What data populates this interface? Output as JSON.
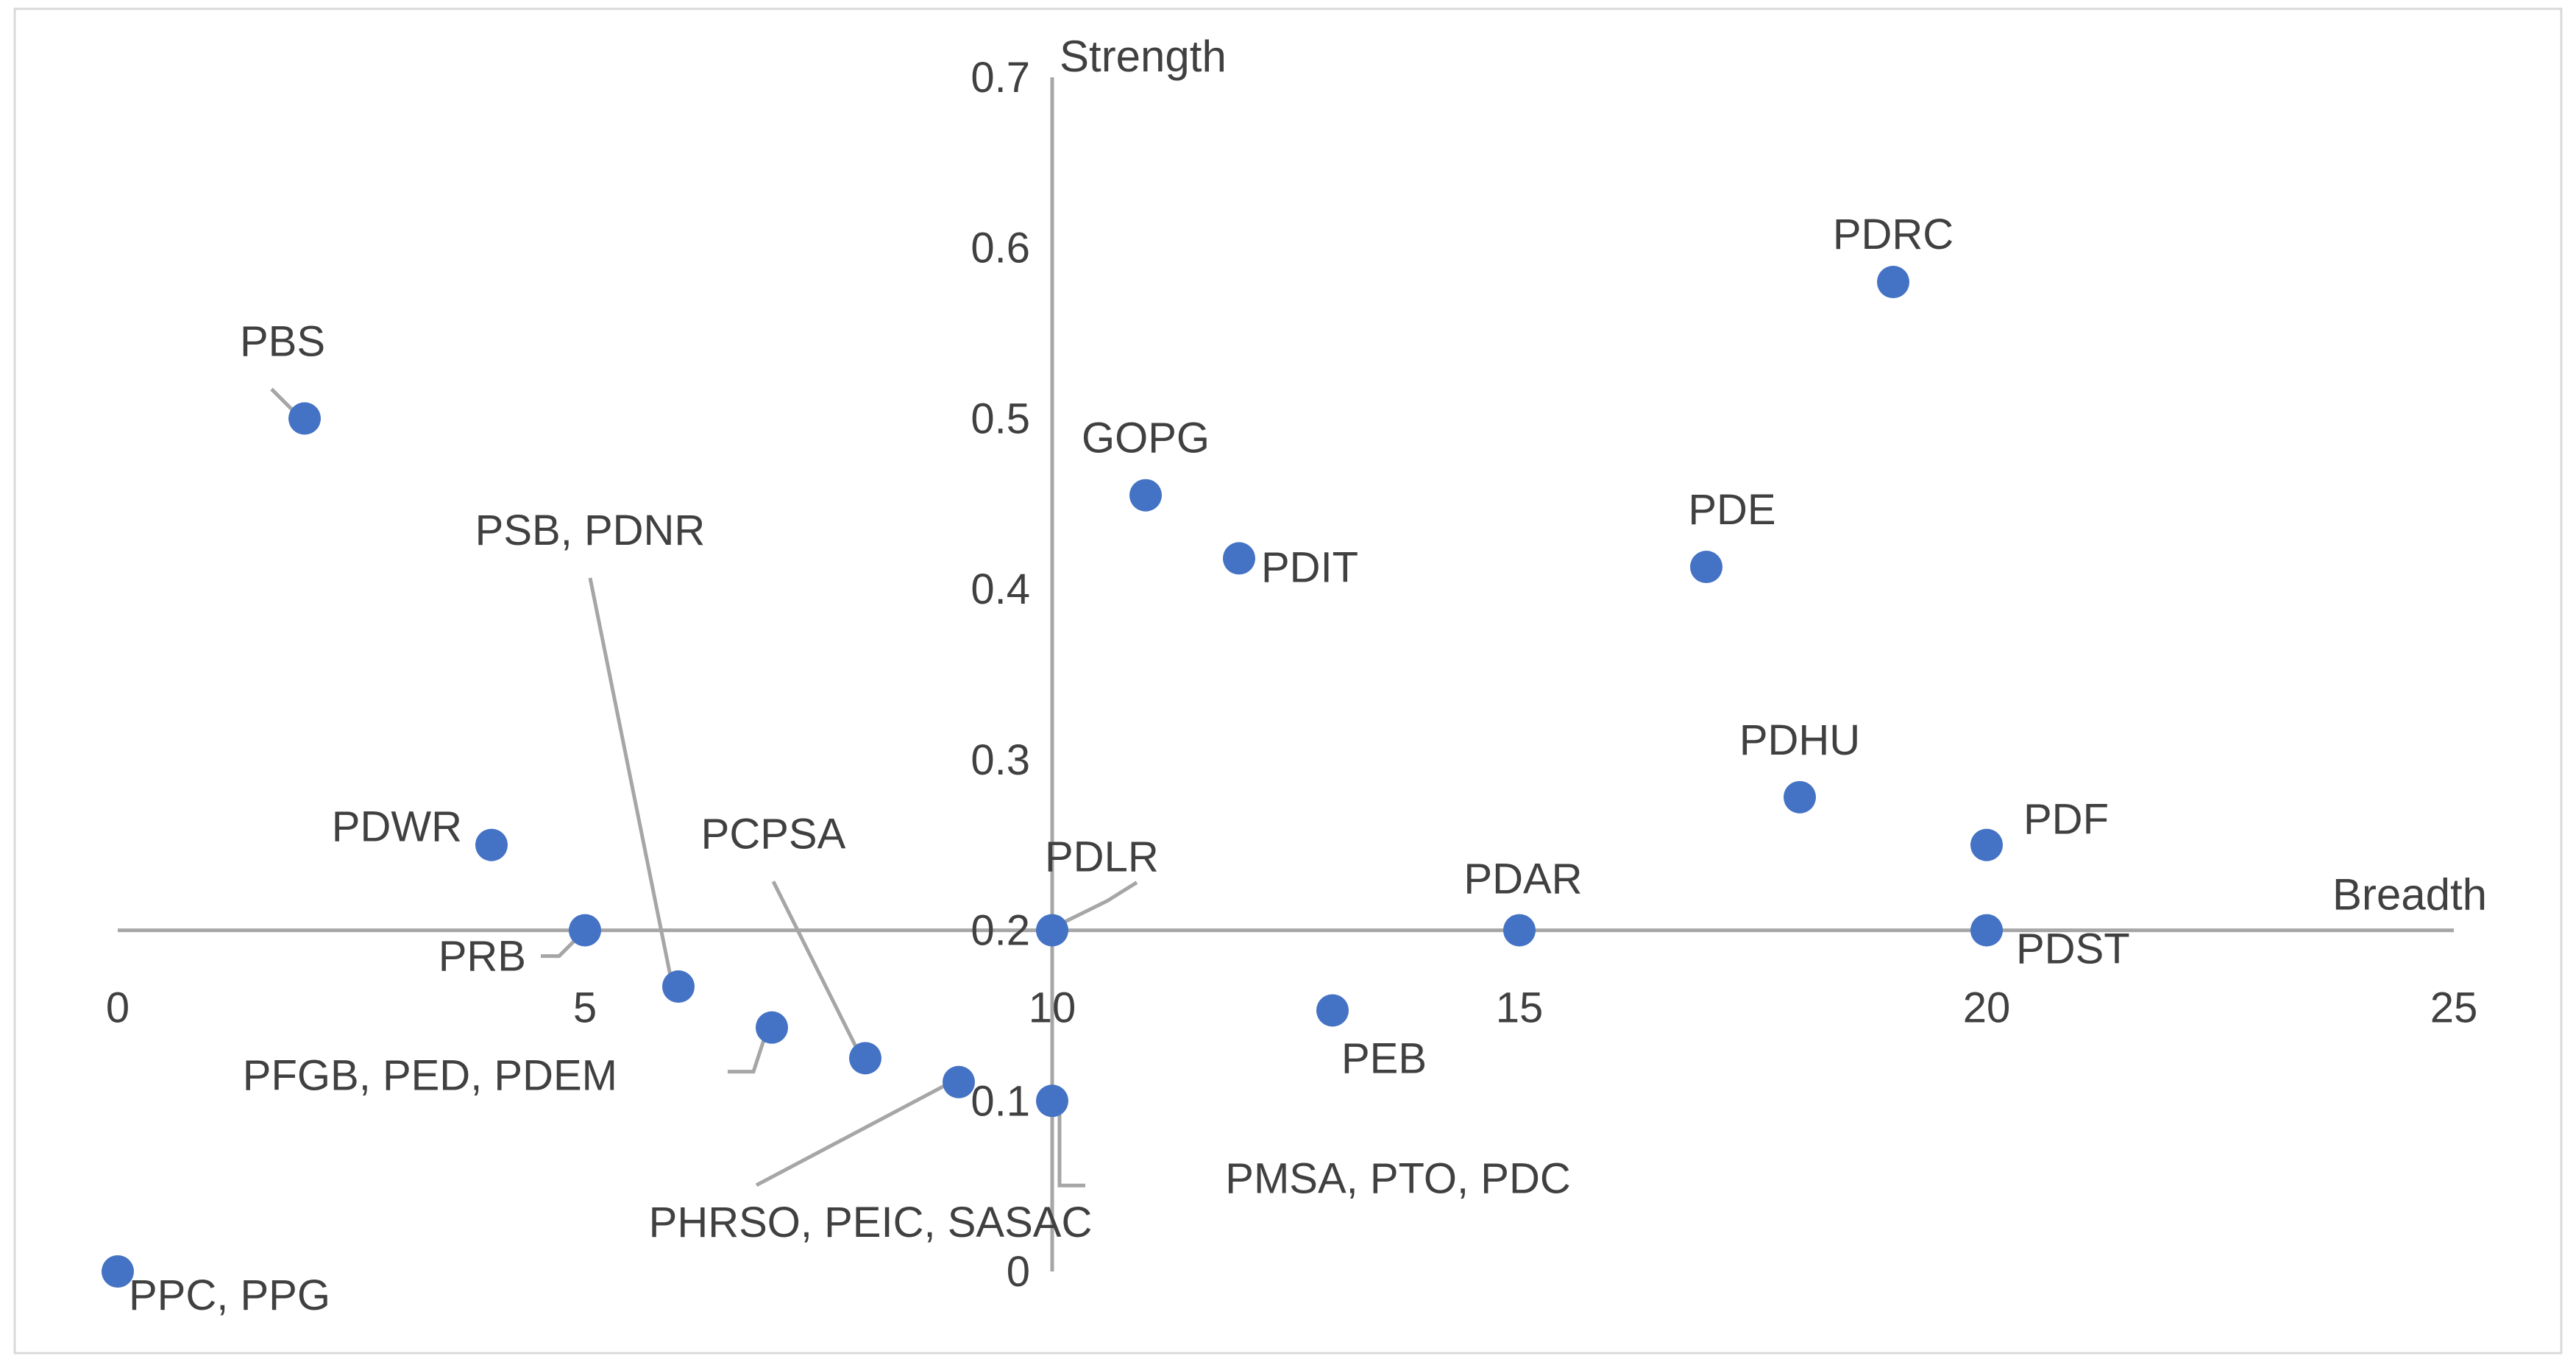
{
  "chart_data": {
    "type": "scatter",
    "xlabel": "Breadth",
    "ylabel": "Strength",
    "xlim": [
      0,
      25
    ],
    "ylim": [
      0,
      0.7
    ],
    "x_ticks": [
      "0",
      "5",
      "10",
      "15",
      "20",
      "25"
    ],
    "y_ticks": [
      "0",
      "0.1",
      "0.2",
      "0.3",
      "0.4",
      "0.5",
      "0.6",
      "0.7"
    ],
    "axes_cross_at": {
      "x": 10,
      "y": 0.2
    },
    "marker_color": "#4472C4",
    "axis_color": "#A6A6A6",
    "points": [
      {
        "label": "PBS",
        "x": 2,
        "y": 0.5
      },
      {
        "label": "PDRC",
        "x": 19,
        "y": 0.58
      },
      {
        "label": "GOPG",
        "x": 11,
        "y": 0.455
      },
      {
        "label": "PDIT",
        "x": 12,
        "y": 0.418
      },
      {
        "label": "PDE",
        "x": 17,
        "y": 0.413
      },
      {
        "label": "PDHU",
        "x": 18,
        "y": 0.278
      },
      {
        "label": "PDF",
        "x": 20,
        "y": 0.25
      },
      {
        "label": "PDWR",
        "x": 4,
        "y": 0.25
      },
      {
        "label": "PRB",
        "x": 5,
        "y": 0.2
      },
      {
        "label": "PDLR",
        "x": 10,
        "y": 0.2
      },
      {
        "label": "PDAR",
        "x": 15,
        "y": 0.2
      },
      {
        "label": "PDST",
        "x": 20,
        "y": 0.2
      },
      {
        "label": "PSB, PDNR",
        "x": 6,
        "y": 0.167
      },
      {
        "label": "PEB",
        "x": 13,
        "y": 0.153
      },
      {
        "label": "PFGB, PED, PDEM",
        "x": 7,
        "y": 0.143
      },
      {
        "label": "PCPSA",
        "x": 8,
        "y": 0.125
      },
      {
        "label": "PHRSO, PEIC, SASAC",
        "x": 9,
        "y": 0.111
      },
      {
        "label": "PMSA, PTO, PDC",
        "x": 10,
        "y": 0.1
      },
      {
        "label": "PPC, PPG",
        "x": 0,
        "y": 0
      }
    ]
  }
}
